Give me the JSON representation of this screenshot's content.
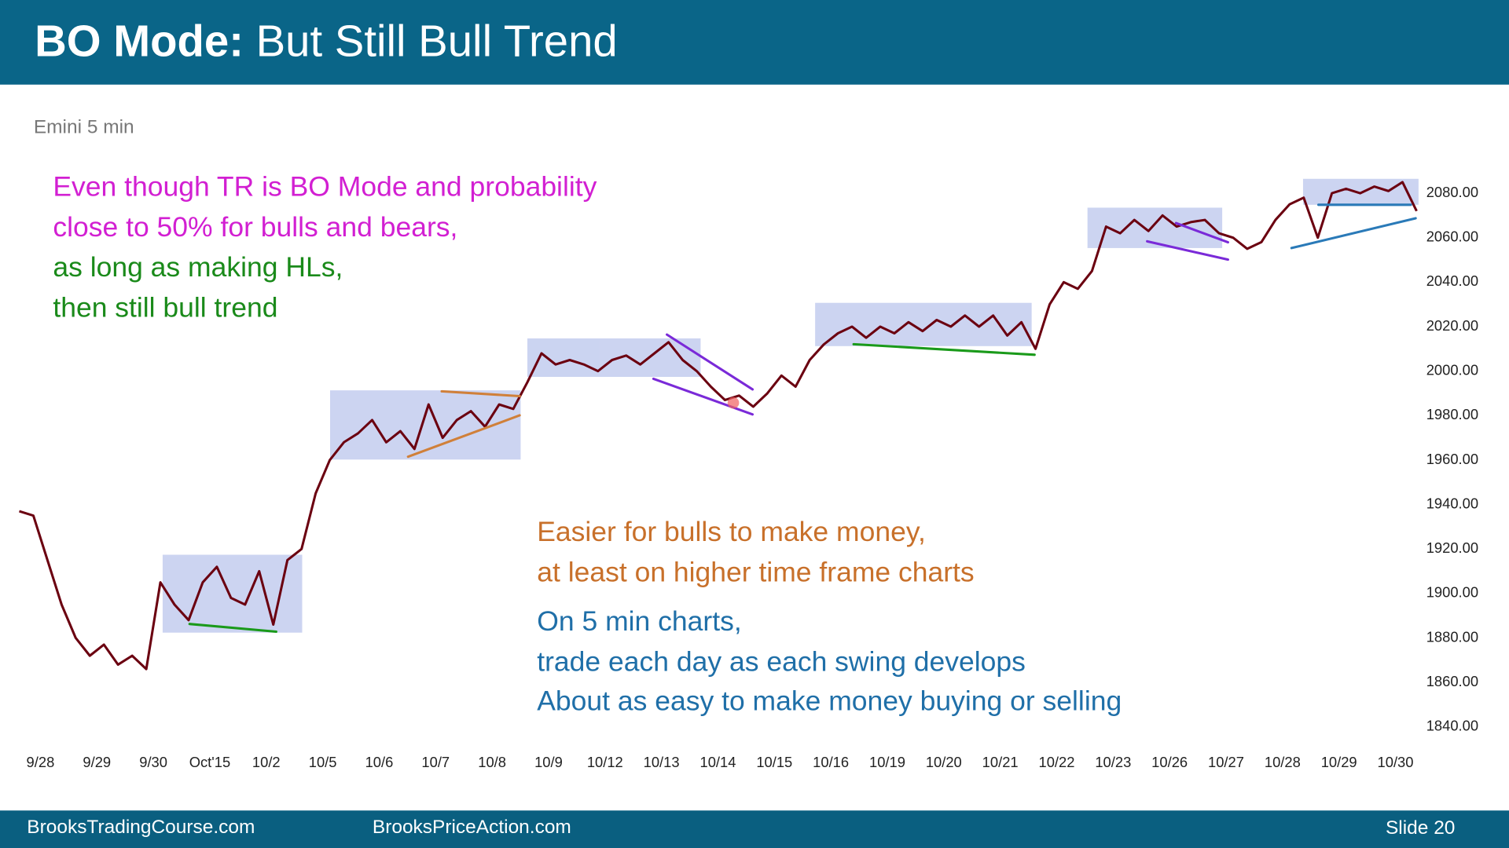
{
  "header": {
    "title_bold": "BO Mode:",
    "title_rest": "But Still Bull Trend"
  },
  "chart_data": {
    "type": "line",
    "subtitle": "Emini 5 min",
    "categories": [
      null,
      "9/28",
      null,
      null,
      null,
      "9/29",
      null,
      null,
      null,
      "9/30",
      null,
      null,
      null,
      "Oct'15",
      null,
      null,
      null,
      "10/2",
      null,
      null,
      null,
      "10/5",
      null,
      null,
      null,
      "10/6",
      null,
      null,
      null,
      "10/7",
      null,
      null,
      null,
      "10/8",
      null,
      null,
      null,
      "10/9",
      null,
      null,
      null,
      "10/12",
      null,
      null,
      null,
      "10/13",
      null,
      null,
      null,
      "10/14",
      null,
      null,
      null,
      "10/15",
      null,
      null,
      null,
      "10/16",
      null,
      null,
      null,
      "10/19",
      null,
      null,
      null,
      "10/20",
      null,
      null,
      null,
      "10/21",
      null,
      null,
      null,
      "10/22",
      null,
      null,
      null,
      "10/23",
      null,
      null,
      null,
      "10/26",
      null,
      null,
      null,
      "10/27",
      null,
      null,
      null,
      "10/28",
      null,
      null,
      null,
      "10/29",
      null,
      null,
      null,
      "10/30",
      null,
      null
    ],
    "series": [
      {
        "color": "#6b0010",
        "values": [
          1937,
          1935,
          1915,
          1895,
          1880,
          1872,
          1877,
          1868,
          1872,
          1866,
          1905,
          1895,
          1888,
          1905,
          1912,
          1898,
          1895,
          1910,
          1886,
          1915,
          1920,
          1945,
          1960,
          1968,
          1972,
          1978,
          1968,
          1973,
          1965,
          1985,
          1970,
          1978,
          1982,
          1975,
          1985,
          1983,
          1995,
          2008,
          2003,
          2005,
          2003,
          2000,
          2005,
          2007,
          2003,
          2008,
          2013,
          2005,
          2000,
          1993,
          1987,
          1989,
          1984,
          1990,
          1998,
          1993,
          2005,
          2012,
          2017,
          2020,
          2015,
          2020,
          2017,
          2022,
          2018,
          2023,
          2020,
          2025,
          2020,
          2025,
          2016,
          2022,
          2010,
          2030,
          2040,
          2037,
          2045,
          2065,
          2062,
          2068,
          2063,
          2070,
          2065,
          2067,
          2068,
          2062,
          2060,
          2055,
          2058,
          2068,
          2075,
          2078,
          2060,
          2080,
          2082,
          2080,
          2083,
          2081,
          2085,
          2072
        ]
      }
    ],
    "ylim": [
      1834,
      2094
    ],
    "yticks": [
      {
        "value": 1840,
        "label": "1840.00"
      },
      {
        "value": 1860,
        "label": "1860.00"
      },
      {
        "value": 1880,
        "label": "1880.00"
      },
      {
        "value": 1900,
        "label": "1900.00"
      },
      {
        "value": 1920,
        "label": "1920.00"
      },
      {
        "value": 1940,
        "label": "1940.00"
      },
      {
        "value": 1960,
        "label": "1960.00"
      },
      {
        "value": 1980,
        "label": "1980.00"
      },
      {
        "value": 2000,
        "label": "2000.00"
      },
      {
        "value": 2020,
        "label": "2020.00"
      },
      {
        "value": 2040,
        "label": "2040.00"
      },
      {
        "value": 2060,
        "label": "2060.00"
      },
      {
        "value": 2080,
        "label": "2080.00"
      }
    ],
    "grid": false,
    "annotations": [
      {
        "text": "Even though TR is BO Mode and probability",
        "color": "#d21fd2"
      },
      {
        "text": "close to 50% for bulls and bears,",
        "color": "#d21fd2"
      },
      {
        "text": "as long as making HLs,",
        "color": "#1a8a1a"
      },
      {
        "text": "then still bull trend",
        "color": "#1a8a1a"
      },
      {
        "text": "Easier for bulls to make money,",
        "color": "#c8702a"
      },
      {
        "text": "at least on higher time frame charts",
        "color": "#c8702a"
      },
      {
        "text": "On 5 min charts,",
        "color": "#1f6fa8"
      },
      {
        "text": "trade each day as each swing develops",
        "color": "#1f6fa8"
      },
      {
        "text": "About as easy to make money buying or selling",
        "color": "#1f6fa8"
      }
    ]
  },
  "footer": {
    "site1": "BrooksTradingCourse.com",
    "site2": "BrooksPriceAction.com",
    "slide": "Slide  20"
  }
}
